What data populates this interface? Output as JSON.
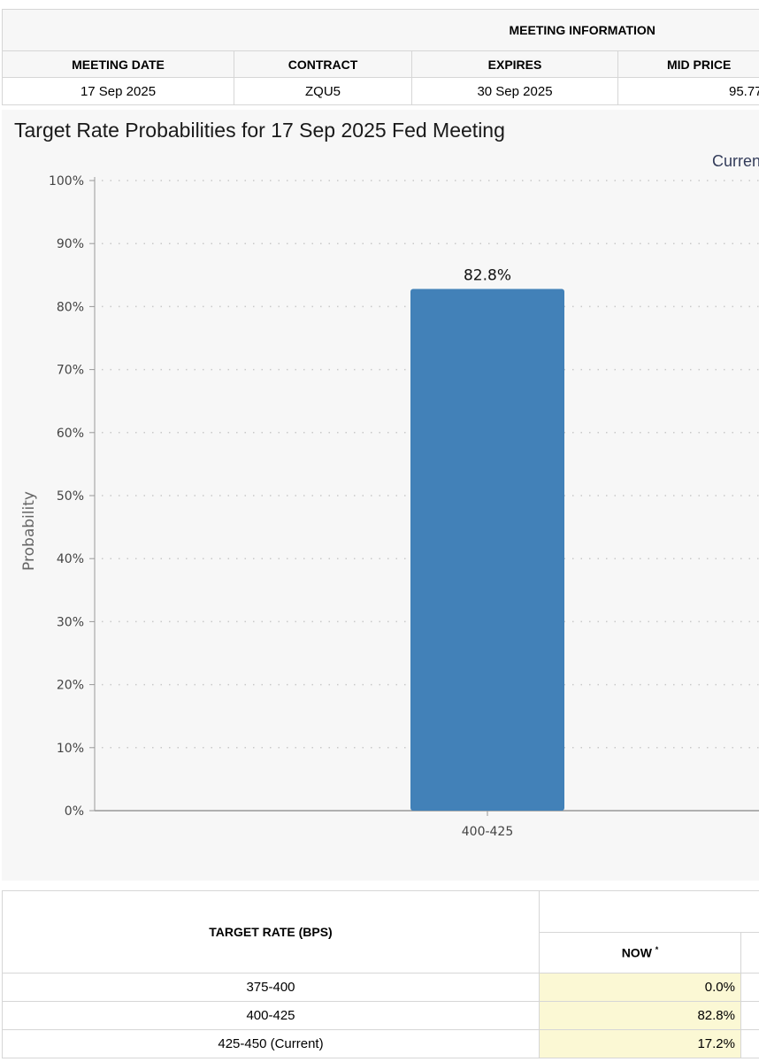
{
  "meeting_info": {
    "title": "MEETING INFORMATION",
    "headers": [
      "MEETING DATE",
      "CONTRACT",
      "EXPIRES",
      "MID PRICE"
    ],
    "values": [
      "17 Sep 2025",
      "ZQU5",
      "30 Sep 2025",
      "95.77"
    ]
  },
  "chart_title": "Target Rate Probabilities for 17 Sep 2025 Fed Meeting",
  "legend_partial": "Curren",
  "chart_data": {
    "type": "bar",
    "categories": [
      "400-425"
    ],
    "values": [
      82.8
    ],
    "data_labels": [
      "82.8%"
    ],
    "ylabel": "Probability",
    "ylim": [
      0,
      100
    ],
    "yticks": [
      "0%",
      "10%",
      "20%",
      "30%",
      "40%",
      "50%",
      "60%",
      "70%",
      "80%",
      "90%",
      "100%"
    ],
    "grid": true,
    "bar_color": "#4281b8"
  },
  "probability_table": {
    "target_header": "TARGET RATE (BPS)",
    "now_header": "NOW",
    "now_marker": "*",
    "rows": [
      {
        "rate": "375-400",
        "now": "0.0%"
      },
      {
        "rate": "400-425",
        "now": "82.8%"
      },
      {
        "rate": "425-450 (Current)",
        "now": "17.2%"
      }
    ]
  },
  "colors": {
    "panel_bg": "#f7f7f7",
    "bar": "#4281b8",
    "now_cell_bg": "#fbf8d4",
    "border": "#d6d6d6"
  }
}
